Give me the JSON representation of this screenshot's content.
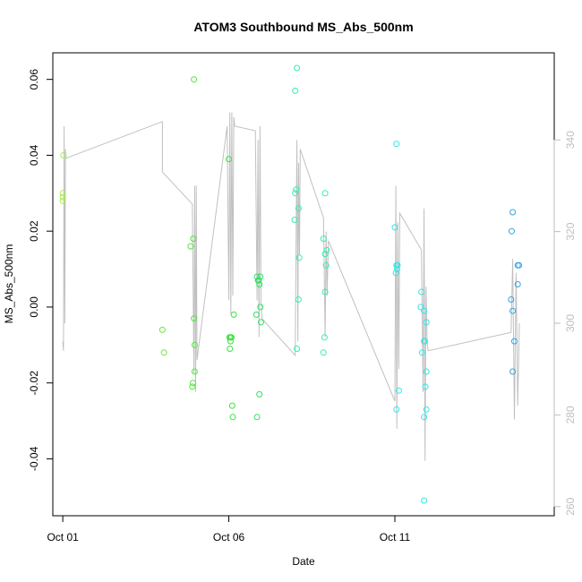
{
  "chart_data": {
    "type": "scatter",
    "title": "ATOM3 Southbound MS_Abs_500nm",
    "xlabel": "Date",
    "ylabel": "MS_Abs_500nm",
    "xlim": [
      -0.3,
      14.8
    ],
    "ylim": [
      -0.055,
      0.067
    ],
    "y2lim": [
      258,
      359
    ],
    "x_ticks": [
      {
        "value": 0,
        "label": "Oct 01"
      },
      {
        "value": 5,
        "label": "Oct 06"
      },
      {
        "value": 10,
        "label": "Oct 11"
      }
    ],
    "y_ticks": [
      {
        "value": -0.04,
        "label": "-0.04"
      },
      {
        "value": -0.02,
        "label": "-0.02"
      },
      {
        "value": 0.0,
        "label": "0.00"
      },
      {
        "value": 0.02,
        "label": "0.02"
      },
      {
        "value": 0.04,
        "label": "0.04"
      },
      {
        "value": 0.06,
        "label": "0.06"
      }
    ],
    "y2_ticks": [
      {
        "value": 260,
        "label": "260"
      },
      {
        "value": 280,
        "label": "280"
      },
      {
        "value": 300,
        "label": "300"
      },
      {
        "value": 320,
        "label": "320"
      },
      {
        "value": 340,
        "label": "340"
      }
    ],
    "points": [
      {
        "x": 0.02,
        "y": 0.04,
        "color": "#a6ee4a"
      },
      {
        "x": 0.0,
        "y": 0.03,
        "color": "#a6ee4a"
      },
      {
        "x": 0.0,
        "y": 0.029,
        "color": "#a6ee4a"
      },
      {
        "x": 0.0,
        "y": 0.028,
        "color": "#a6ee4a"
      },
      {
        "x": 3.0,
        "y": -0.006,
        "color": "#6fe43a"
      },
      {
        "x": 3.05,
        "y": -0.012,
        "color": "#6fe43a"
      },
      {
        "x": 3.95,
        "y": 0.06,
        "color": "#4ee83a"
      },
      {
        "x": 3.85,
        "y": 0.016,
        "color": "#4ee83a"
      },
      {
        "x": 3.93,
        "y": 0.018,
        "color": "#4ee83a"
      },
      {
        "x": 3.95,
        "y": -0.003,
        "color": "#4ee83a"
      },
      {
        "x": 3.97,
        "y": -0.01,
        "color": "#4ee83a"
      },
      {
        "x": 3.97,
        "y": -0.017,
        "color": "#4ee83a"
      },
      {
        "x": 3.92,
        "y": -0.02,
        "color": "#4ee83a"
      },
      {
        "x": 3.9,
        "y": -0.021,
        "color": "#4ee83a"
      },
      {
        "x": 5.0,
        "y": 0.039,
        "color": "#36e43c"
      },
      {
        "x": 5.02,
        "y": -0.008,
        "color": "#36e43c"
      },
      {
        "x": 5.05,
        "y": -0.008,
        "color": "#36e43c"
      },
      {
        "x": 5.08,
        "y": -0.008,
        "color": "#36e43c"
      },
      {
        "x": 5.05,
        "y": -0.009,
        "color": "#36e43c"
      },
      {
        "x": 5.03,
        "y": -0.011,
        "color": "#36e43c"
      },
      {
        "x": 5.15,
        "y": -0.002,
        "color": "#36e43c"
      },
      {
        "x": 5.1,
        "y": -0.026,
        "color": "#36e43c"
      },
      {
        "x": 5.12,
        "y": -0.029,
        "color": "#36e43c"
      },
      {
        "x": 5.85,
        "y": 0.008,
        "color": "#30e065"
      },
      {
        "x": 5.9,
        "y": 0.007,
        "color": "#30e065"
      },
      {
        "x": 5.95,
        "y": 0.008,
        "color": "#30e065"
      },
      {
        "x": 5.92,
        "y": 0.006,
        "color": "#30e065"
      },
      {
        "x": 5.88,
        "y": 0.007,
        "color": "#30e065"
      },
      {
        "x": 5.95,
        "y": 0.0,
        "color": "#30e065"
      },
      {
        "x": 5.83,
        "y": -0.002,
        "color": "#30e065"
      },
      {
        "x": 5.97,
        "y": -0.004,
        "color": "#30e065"
      },
      {
        "x": 5.92,
        "y": -0.023,
        "color": "#30e065"
      },
      {
        "x": 5.85,
        "y": -0.029,
        "color": "#30e065"
      },
      {
        "x": 7.05,
        "y": 0.063,
        "color": "#35efa8"
      },
      {
        "x": 7.0,
        "y": 0.057,
        "color": "#35efa8"
      },
      {
        "x": 7.03,
        "y": 0.031,
        "color": "#35efa8"
      },
      {
        "x": 7.0,
        "y": 0.03,
        "color": "#35efa8"
      },
      {
        "x": 7.1,
        "y": 0.026,
        "color": "#35efa8"
      },
      {
        "x": 6.98,
        "y": 0.023,
        "color": "#35efa8"
      },
      {
        "x": 7.12,
        "y": 0.013,
        "color": "#35efa8"
      },
      {
        "x": 7.1,
        "y": 0.002,
        "color": "#35efa8"
      },
      {
        "x": 7.05,
        "y": -0.011,
        "color": "#35efa8"
      },
      {
        "x": 7.9,
        "y": 0.03,
        "color": "#35efa8"
      },
      {
        "x": 7.85,
        "y": 0.018,
        "color": "#35efa8"
      },
      {
        "x": 7.95,
        "y": 0.015,
        "color": "#35efa8"
      },
      {
        "x": 7.9,
        "y": 0.014,
        "color": "#35efa8"
      },
      {
        "x": 7.93,
        "y": 0.011,
        "color": "#35efa8"
      },
      {
        "x": 7.9,
        "y": 0.004,
        "color": "#35efa8"
      },
      {
        "x": 7.88,
        "y": -0.008,
        "color": "#35efa8"
      },
      {
        "x": 7.85,
        "y": -0.012,
        "color": "#35efa8"
      },
      {
        "x": 10.05,
        "y": 0.043,
        "color": "#30e6e6"
      },
      {
        "x": 10.0,
        "y": 0.021,
        "color": "#30e6e6"
      },
      {
        "x": 10.05,
        "y": 0.011,
        "color": "#30e6e6"
      },
      {
        "x": 10.08,
        "y": 0.011,
        "color": "#30e6e6"
      },
      {
        "x": 10.07,
        "y": 0.01,
        "color": "#30e6e6"
      },
      {
        "x": 10.03,
        "y": 0.009,
        "color": "#30e6e6"
      },
      {
        "x": 10.12,
        "y": -0.022,
        "color": "#30e6e6"
      },
      {
        "x": 10.05,
        "y": -0.027,
        "color": "#30e6e6"
      },
      {
        "x": 10.8,
        "y": 0.004,
        "color": "#30e6e6"
      },
      {
        "x": 10.78,
        "y": 0.0,
        "color": "#30e6e6"
      },
      {
        "x": 10.88,
        "y": -0.001,
        "color": "#30e6e6"
      },
      {
        "x": 10.95,
        "y": -0.004,
        "color": "#30e6e6"
      },
      {
        "x": 10.9,
        "y": -0.009,
        "color": "#30e6e6"
      },
      {
        "x": 10.88,
        "y": -0.009,
        "color": "#30e6e6"
      },
      {
        "x": 10.82,
        "y": -0.012,
        "color": "#30e6e6"
      },
      {
        "x": 10.95,
        "y": -0.017,
        "color": "#30e6e6"
      },
      {
        "x": 10.92,
        "y": -0.021,
        "color": "#30e6e6"
      },
      {
        "x": 10.95,
        "y": -0.027,
        "color": "#30e6e6"
      },
      {
        "x": 10.88,
        "y": -0.029,
        "color": "#30e6e6"
      },
      {
        "x": 10.88,
        "y": -0.051,
        "color": "#30e6e6"
      },
      {
        "x": 13.55,
        "y": 0.025,
        "color": "#2fa4e2"
      },
      {
        "x": 13.52,
        "y": 0.02,
        "color": "#2fa4e2"
      },
      {
        "x": 13.7,
        "y": 0.011,
        "color": "#2fa4e2"
      },
      {
        "x": 13.74,
        "y": 0.011,
        "color": "#2fa4e2"
      },
      {
        "x": 13.7,
        "y": 0.006,
        "color": "#2fa4e2"
      },
      {
        "x": 13.5,
        "y": 0.002,
        "color": "#2fa4e2"
      },
      {
        "x": 13.55,
        "y": -0.001,
        "color": "#2fa4e2"
      },
      {
        "x": 13.6,
        "y": -0.009,
        "color": "#2fa4e2"
      },
      {
        "x": 13.55,
        "y": -0.017,
        "color": "#2fa4e2"
      }
    ],
    "secondary_line": {
      "color": "#c0c0c0",
      "x": [
        0.0,
        0.02,
        0.04,
        0.06,
        0.08,
        0.1,
        3.0,
        3.0,
        3.9,
        3.95,
        3.97,
        4.0,
        4.02,
        4.04,
        4.95,
        5.0,
        5.03,
        5.06,
        5.09,
        5.12,
        5.15,
        5.18,
        5.8,
        5.85,
        5.88,
        5.91,
        5.94,
        5.97,
        6.0,
        7.0,
        7.05,
        7.08,
        7.1,
        7.13,
        7.15,
        7.85,
        7.9,
        7.93,
        7.96,
        8.0,
        10.0,
        10.03,
        10.06,
        10.09,
        10.12,
        10.15,
        10.8,
        10.85,
        10.88,
        10.91,
        10.94,
        10.97,
        11.0,
        13.5,
        13.55,
        13.6,
        13.65,
        13.7,
        13.75
      ],
      "y": [
        296,
        294,
        343,
        300,
        338,
        336,
        344,
        333,
        326,
        289,
        330,
        285,
        330,
        292,
        343,
        305,
        346,
        302,
        346,
        306,
        345,
        343,
        342,
        305,
        340,
        297,
        343,
        305,
        301,
        293,
        340,
        296,
        335,
        315,
        338,
        323,
        297,
        320,
        306,
        318,
        283,
        330,
        277,
        322,
        290,
        324,
        316,
        285,
        325,
        270,
        308,
        296,
        294,
        298,
        314,
        279,
        311,
        282,
        300
      ]
    }
  }
}
